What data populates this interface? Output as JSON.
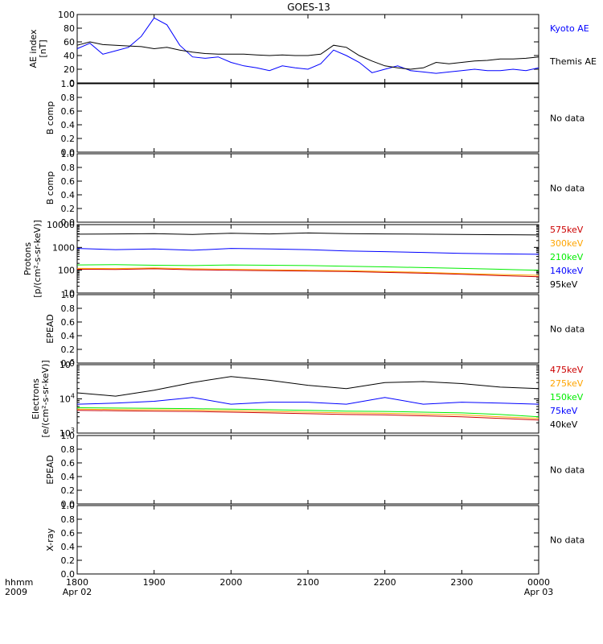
{
  "title": "GOES-13",
  "time_axis": {
    "corner_top": "hhmm",
    "corner_bottom": "2009",
    "ticks": [
      "1800",
      "1900",
      "2000",
      "2100",
      "2200",
      "2300",
      "0000"
    ],
    "dates": [
      {
        "tick": "1800",
        "label": "Apr 02"
      },
      {
        "tick": "0000",
        "label": "Apr 03"
      }
    ]
  },
  "colors": {
    "black": "#000000",
    "blue": "#0000ff",
    "green": "#00ee00",
    "orange": "#ffa500",
    "red": "#cc0000"
  },
  "chart_data": [
    {
      "type": "line",
      "ylabel": "AE index [nT]",
      "ylabel_lines": [
        "AE index",
        "[nT]"
      ],
      "yscale": "linear",
      "ylim": [
        0,
        100
      ],
      "yticks": [
        "0",
        "20",
        "40",
        "60",
        "80",
        "100"
      ],
      "legend": [
        {
          "label": "Kyoto AE",
          "color": "#0000ff"
        },
        {
          "label": "Themis AE",
          "color": "#000000"
        }
      ],
      "x": [
        "1800",
        "1810",
        "1820",
        "1830",
        "1840",
        "1850",
        "1900",
        "1910",
        "1920",
        "1930",
        "1940",
        "1950",
        "2000",
        "2010",
        "2020",
        "2030",
        "2040",
        "2050",
        "2100",
        "2110",
        "2120",
        "2130",
        "2140",
        "2150",
        "2200",
        "2210",
        "2220",
        "2230",
        "2240",
        "2250",
        "2300",
        "2310",
        "2320",
        "2330",
        "2340",
        "2350",
        "0000"
      ],
      "series": [
        {
          "name": "Kyoto AE",
          "color": "#0000ff",
          "values": [
            50,
            58,
            42,
            47,
            52,
            68,
            95,
            85,
            55,
            38,
            36,
            38,
            30,
            25,
            22,
            18,
            25,
            22,
            20,
            28,
            48,
            40,
            30,
            15,
            20,
            25,
            18,
            16,
            14,
            16,
            18,
            20,
            18,
            18,
            20,
            18,
            22
          ]
        },
        {
          "name": "Themis AE",
          "color": "#000000",
          "values": [
            55,
            60,
            56,
            55,
            54,
            53,
            50,
            52,
            48,
            45,
            43,
            42,
            42,
            42,
            41,
            40,
            41,
            40,
            40,
            42,
            55,
            52,
            40,
            32,
            25,
            22,
            20,
            22,
            30,
            28,
            30,
            32,
            33,
            35,
            35,
            36,
            38
          ]
        }
      ]
    },
    {
      "type": "line",
      "ylabel": "B comp",
      "ylim": [
        0,
        1
      ],
      "yticks": [
        "0.0",
        "0.2",
        "0.4",
        "0.6",
        "0.8",
        "1.0"
      ],
      "note": "No data"
    },
    {
      "type": "line",
      "ylabel": "B comp",
      "ylim": [
        0,
        1
      ],
      "yticks": [
        "0.0",
        "0.2",
        "0.4",
        "0.6",
        "0.8",
        "1.0"
      ],
      "note": "No data"
    },
    {
      "type": "line",
      "ylabel": "Protons [p/(cm2-s-sr-keV)]",
      "ylabel_lines": [
        "Protons",
        "[p/(cm²-s-sr-keV)]"
      ],
      "yscale": "log",
      "ylim": [
        10,
        10000
      ],
      "yticks": [
        "10",
        "100",
        "1000",
        "10000"
      ],
      "legend": [
        {
          "label": "575keV",
          "color": "#cc0000"
        },
        {
          "label": "300keV",
          "color": "#ffa500"
        },
        {
          "label": "210keV",
          "color": "#00ee00"
        },
        {
          "label": "140keV",
          "color": "#0000ff"
        },
        {
          "label": "95keV",
          "color": "#000000"
        }
      ],
      "x": [
        "1800",
        "1830",
        "1900",
        "1930",
        "2000",
        "2030",
        "2100",
        "2130",
        "2200",
        "2230",
        "2300",
        "2330",
        "0000"
      ],
      "series": [
        {
          "name": "95keV",
          "color": "#000000",
          "values": [
            3800,
            3900,
            4000,
            3700,
            4200,
            3900,
            4300,
            4000,
            3900,
            3800,
            3700,
            3600,
            3500
          ]
        },
        {
          "name": "140keV",
          "color": "#0000ff",
          "values": [
            900,
            800,
            850,
            750,
            900,
            850,
            800,
            700,
            650,
            600,
            550,
            520,
            500
          ]
        },
        {
          "name": "210keV",
          "color": "#00ee00",
          "values": [
            170,
            175,
            165,
            160,
            170,
            165,
            160,
            150,
            140,
            130,
            120,
            110,
            100
          ]
        },
        {
          "name": "300keV",
          "color": "#ffa500",
          "values": [
            120,
            118,
            125,
            115,
            110,
            105,
            100,
            95,
            88,
            80,
            72,
            65,
            60
          ]
        },
        {
          "name": "575keV",
          "color": "#cc0000",
          "values": [
            110,
            108,
            115,
            105,
            100,
            95,
            92,
            88,
            80,
            74,
            66,
            58,
            52
          ]
        }
      ]
    },
    {
      "type": "line",
      "ylabel": "EPEAD",
      "ylim": [
        0,
        1
      ],
      "yticks": [
        "0.0",
        "0.2",
        "0.4",
        "0.6",
        "0.8",
        "1.0"
      ],
      "note": "No data"
    },
    {
      "type": "line",
      "ylabel": "Electrons [e/(cm2-s-sr-keV)]",
      "ylabel_lines": [
        "Electrons",
        "[e/(cm²-s-sr-keV)]"
      ],
      "yscale": "log",
      "ylim": [
        1000,
        100000
      ],
      "yticks": [
        "10^3",
        "10^4",
        "10^5"
      ],
      "legend": [
        {
          "label": "475keV",
          "color": "#cc0000"
        },
        {
          "label": "275keV",
          "color": "#ffa500"
        },
        {
          "label": "150keV",
          "color": "#00ee00"
        },
        {
          "label": "75keV",
          "color": "#0000ff"
        },
        {
          "label": "40keV",
          "color": "#000000"
        }
      ],
      "x": [
        "1800",
        "1830",
        "1900",
        "1930",
        "2000",
        "2030",
        "2100",
        "2130",
        "2200",
        "2230",
        "2300",
        "2330",
        "0000"
      ],
      "series": [
        {
          "name": "40keV",
          "color": "#000000",
          "values": [
            15000,
            12000,
            18000,
            30000,
            45000,
            35000,
            25000,
            20000,
            30000,
            32000,
            28000,
            22000,
            20000
          ]
        },
        {
          "name": "75keV",
          "color": "#0000ff",
          "values": [
            7000,
            7500,
            8500,
            11000,
            7000,
            8000,
            8000,
            7000,
            11000,
            7000,
            8000,
            7500,
            7000
          ]
        },
        {
          "name": "150keV",
          "color": "#00ee00",
          "values": [
            5500,
            5400,
            5300,
            5200,
            5000,
            4800,
            4600,
            4400,
            4300,
            4100,
            3900,
            3500,
            3000
          ]
        },
        {
          "name": "275keV",
          "color": "#ffa500",
          "values": [
            5000,
            4900,
            4800,
            4700,
            4500,
            4300,
            4100,
            3900,
            3800,
            3600,
            3400,
            3000,
            2700
          ]
        },
        {
          "name": "475keV",
          "color": "#cc0000",
          "values": [
            4600,
            4500,
            4400,
            4300,
            4100,
            3900,
            3700,
            3500,
            3400,
            3200,
            3000,
            2700,
            2400
          ]
        }
      ]
    },
    {
      "type": "line",
      "ylabel": "EPEAD",
      "ylim": [
        0,
        1
      ],
      "yticks": [
        "0.0",
        "0.2",
        "0.4",
        "0.6",
        "0.8",
        "1.0"
      ],
      "note": "No data"
    },
    {
      "type": "line",
      "ylabel": "X-ray",
      "ylim": [
        0,
        1
      ],
      "yticks": [
        "0.0",
        "0.2",
        "0.4",
        "0.6",
        "0.8",
        "1.0"
      ],
      "note": "No data"
    }
  ]
}
